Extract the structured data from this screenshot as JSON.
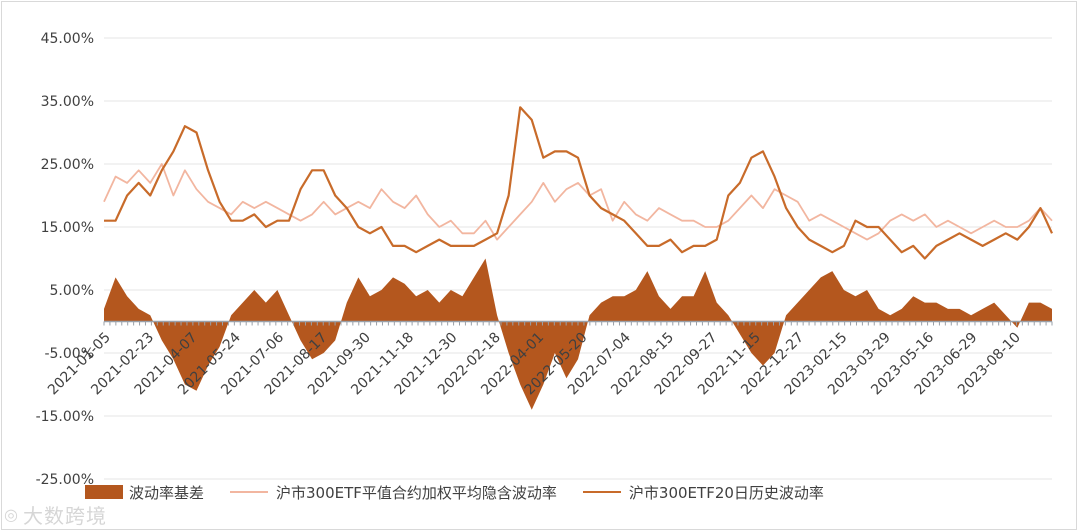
{
  "chart_data": {
    "type": "line+area",
    "ylim": [
      -25,
      45
    ],
    "y_ticks": [
      "45.00%",
      "35.00%",
      "25.00%",
      "15.00%",
      "5.00%",
      "-5.00%",
      "-15.00%",
      "-25.00%"
    ],
    "y_tick_values": [
      45,
      35,
      25,
      15,
      5,
      -5,
      -15,
      -25
    ],
    "x_ticks": [
      "2021-01-05",
      "2021-02-23",
      "2021-04-07",
      "2021-05-24",
      "2021-07-06",
      "2021-08-17",
      "2021-09-30",
      "2021-11-18",
      "2021-12-30",
      "2022-02-18",
      "2022-04-01",
      "2022-05-20",
      "2022-07-04",
      "2022-08-15",
      "2022-09-27",
      "2022-11-15",
      "2022-12-27",
      "2023-02-15",
      "2023-03-29",
      "2023-05-16",
      "2023-06-29",
      "2023-08-10"
    ],
    "legend_position": "bottom",
    "grid": "horizontal",
    "series": [
      {
        "name": "波动率基差",
        "type": "area",
        "color": "#b4571e",
        "points": [
          [
            0,
            2
          ],
          [
            1,
            7
          ],
          [
            2,
            4
          ],
          [
            3,
            2
          ],
          [
            4,
            1
          ],
          [
            5,
            -3
          ],
          [
            6,
            -6
          ],
          [
            7,
            -10
          ],
          [
            8,
            -11
          ],
          [
            9,
            -7
          ],
          [
            10,
            -4
          ],
          [
            11,
            1
          ],
          [
            12,
            3
          ],
          [
            13,
            5
          ],
          [
            14,
            3
          ],
          [
            15,
            5
          ],
          [
            16,
            1
          ],
          [
            17,
            -3
          ],
          [
            18,
            -6
          ],
          [
            19,
            -5
          ],
          [
            20,
            -3
          ],
          [
            21,
            3
          ],
          [
            22,
            7
          ],
          [
            23,
            4
          ],
          [
            24,
            5
          ],
          [
            25,
            7
          ],
          [
            26,
            6
          ],
          [
            27,
            4
          ],
          [
            28,
            5
          ],
          [
            29,
            3
          ],
          [
            30,
            5
          ],
          [
            31,
            4
          ],
          [
            32,
            7
          ],
          [
            33,
            10
          ],
          [
            34,
            1
          ],
          [
            35,
            -5
          ],
          [
            36,
            -10
          ],
          [
            37,
            -14
          ],
          [
            38,
            -10
          ],
          [
            39,
            -5
          ],
          [
            40,
            -9
          ],
          [
            41,
            -6
          ],
          [
            42,
            1
          ],
          [
            43,
            3
          ],
          [
            44,
            4
          ],
          [
            45,
            4
          ],
          [
            46,
            5
          ],
          [
            47,
            8
          ],
          [
            48,
            4
          ],
          [
            49,
            2
          ],
          [
            50,
            4
          ],
          [
            51,
            4
          ],
          [
            52,
            8
          ],
          [
            53,
            3
          ],
          [
            54,
            1
          ],
          [
            55,
            -2
          ],
          [
            56,
            -5
          ],
          [
            57,
            -7
          ],
          [
            58,
            -5
          ],
          [
            59,
            1
          ],
          [
            60,
            3
          ],
          [
            61,
            5
          ],
          [
            62,
            7
          ],
          [
            63,
            8
          ],
          [
            64,
            5
          ],
          [
            65,
            4
          ],
          [
            66,
            5
          ],
          [
            67,
            2
          ],
          [
            68,
            1
          ],
          [
            69,
            2
          ],
          [
            70,
            4
          ],
          [
            71,
            3
          ],
          [
            72,
            3
          ],
          [
            73,
            2
          ],
          [
            74,
            2
          ],
          [
            75,
            1
          ],
          [
            76,
            2
          ],
          [
            77,
            3
          ],
          [
            78,
            1
          ],
          [
            79,
            -1
          ],
          [
            80,
            3
          ],
          [
            81,
            3
          ],
          [
            82,
            2
          ]
        ]
      },
      {
        "name": "沪市300ETF平值合约加权平均隐含波动率",
        "type": "line",
        "color": "#f2b6a0",
        "points": [
          [
            0,
            19
          ],
          [
            1,
            23
          ],
          [
            2,
            22
          ],
          [
            3,
            24
          ],
          [
            4,
            22
          ],
          [
            5,
            25
          ],
          [
            6,
            20
          ],
          [
            7,
            24
          ],
          [
            8,
            21
          ],
          [
            9,
            19
          ],
          [
            10,
            18
          ],
          [
            11,
            17
          ],
          [
            12,
            19
          ],
          [
            13,
            18
          ],
          [
            14,
            19
          ],
          [
            15,
            18
          ],
          [
            16,
            17
          ],
          [
            17,
            16
          ],
          [
            18,
            17
          ],
          [
            19,
            19
          ],
          [
            20,
            17
          ],
          [
            21,
            18
          ],
          [
            22,
            19
          ],
          [
            23,
            18
          ],
          [
            24,
            21
          ],
          [
            25,
            19
          ],
          [
            26,
            18
          ],
          [
            27,
            20
          ],
          [
            28,
            17
          ],
          [
            29,
            15
          ],
          [
            30,
            16
          ],
          [
            31,
            14
          ],
          [
            32,
            14
          ],
          [
            33,
            16
          ],
          [
            34,
            13
          ],
          [
            35,
            15
          ],
          [
            36,
            17
          ],
          [
            37,
            19
          ],
          [
            38,
            22
          ],
          [
            39,
            19
          ],
          [
            40,
            21
          ],
          [
            41,
            22
          ],
          [
            42,
            20
          ],
          [
            43,
            21
          ],
          [
            44,
            16
          ],
          [
            45,
            19
          ],
          [
            46,
            17
          ],
          [
            47,
            16
          ],
          [
            48,
            18
          ],
          [
            49,
            17
          ],
          [
            50,
            16
          ],
          [
            51,
            16
          ],
          [
            52,
            15
          ],
          [
            53,
            15
          ],
          [
            54,
            16
          ],
          [
            55,
            18
          ],
          [
            56,
            20
          ],
          [
            57,
            18
          ],
          [
            58,
            21
          ],
          [
            59,
            20
          ],
          [
            60,
            19
          ],
          [
            61,
            16
          ],
          [
            62,
            17
          ],
          [
            63,
            16
          ],
          [
            64,
            15
          ],
          [
            65,
            14
          ],
          [
            66,
            13
          ],
          [
            67,
            14
          ],
          [
            68,
            16
          ],
          [
            69,
            17
          ],
          [
            70,
            16
          ],
          [
            71,
            17
          ],
          [
            72,
            15
          ],
          [
            73,
            16
          ],
          [
            74,
            15
          ],
          [
            75,
            14
          ],
          [
            76,
            15
          ],
          [
            77,
            16
          ],
          [
            78,
            15
          ],
          [
            79,
            15
          ],
          [
            80,
            16
          ],
          [
            81,
            18
          ],
          [
            82,
            16
          ]
        ]
      },
      {
        "name": "沪市300ETF20日历史波动率",
        "type": "line",
        "color": "#c86b2a",
        "points": [
          [
            0,
            16
          ],
          [
            1,
            16
          ],
          [
            2,
            20
          ],
          [
            3,
            22
          ],
          [
            4,
            20
          ],
          [
            5,
            24
          ],
          [
            6,
            27
          ],
          [
            7,
            31
          ],
          [
            8,
            30
          ],
          [
            9,
            24
          ],
          [
            10,
            19
          ],
          [
            11,
            16
          ],
          [
            12,
            16
          ],
          [
            13,
            17
          ],
          [
            14,
            15
          ],
          [
            15,
            16
          ],
          [
            16,
            16
          ],
          [
            17,
            21
          ],
          [
            18,
            24
          ],
          [
            19,
            24
          ],
          [
            20,
            20
          ],
          [
            21,
            18
          ],
          [
            22,
            15
          ],
          [
            23,
            14
          ],
          [
            24,
            15
          ],
          [
            25,
            12
          ],
          [
            26,
            12
          ],
          [
            27,
            11
          ],
          [
            28,
            12
          ],
          [
            29,
            13
          ],
          [
            30,
            12
          ],
          [
            31,
            12
          ],
          [
            32,
            12
          ],
          [
            33,
            13
          ],
          [
            34,
            14
          ],
          [
            35,
            20
          ],
          [
            36,
            34
          ],
          [
            37,
            32
          ],
          [
            38,
            26
          ],
          [
            39,
            27
          ],
          [
            40,
            27
          ],
          [
            41,
            26
          ],
          [
            42,
            20
          ],
          [
            43,
            18
          ],
          [
            44,
            17
          ],
          [
            45,
            16
          ],
          [
            46,
            14
          ],
          [
            47,
            12
          ],
          [
            48,
            12
          ],
          [
            49,
            13
          ],
          [
            50,
            11
          ],
          [
            51,
            12
          ],
          [
            52,
            12
          ],
          [
            53,
            13
          ],
          [
            54,
            20
          ],
          [
            55,
            22
          ],
          [
            56,
            26
          ],
          [
            57,
            27
          ],
          [
            58,
            23
          ],
          [
            59,
            18
          ],
          [
            60,
            15
          ],
          [
            61,
            13
          ],
          [
            62,
            12
          ],
          [
            63,
            11
          ],
          [
            64,
            12
          ],
          [
            65,
            16
          ],
          [
            66,
            15
          ],
          [
            67,
            15
          ],
          [
            68,
            13
          ],
          [
            69,
            11
          ],
          [
            70,
            12
          ],
          [
            71,
            10
          ],
          [
            72,
            12
          ],
          [
            73,
            13
          ],
          [
            74,
            14
          ],
          [
            75,
            13
          ],
          [
            76,
            12
          ],
          [
            77,
            13
          ],
          [
            78,
            14
          ],
          [
            79,
            13
          ],
          [
            80,
            15
          ],
          [
            81,
            18
          ],
          [
            82,
            14
          ]
        ]
      }
    ]
  },
  "legend": {
    "item1": "波动率基差",
    "item2": "沪市300ETF平值合约加权平均隐含波动率",
    "item3": "沪市300ETF20日历史波动率"
  },
  "watermark": {
    "text": "大数跨境",
    "logo": "logo-icon"
  }
}
